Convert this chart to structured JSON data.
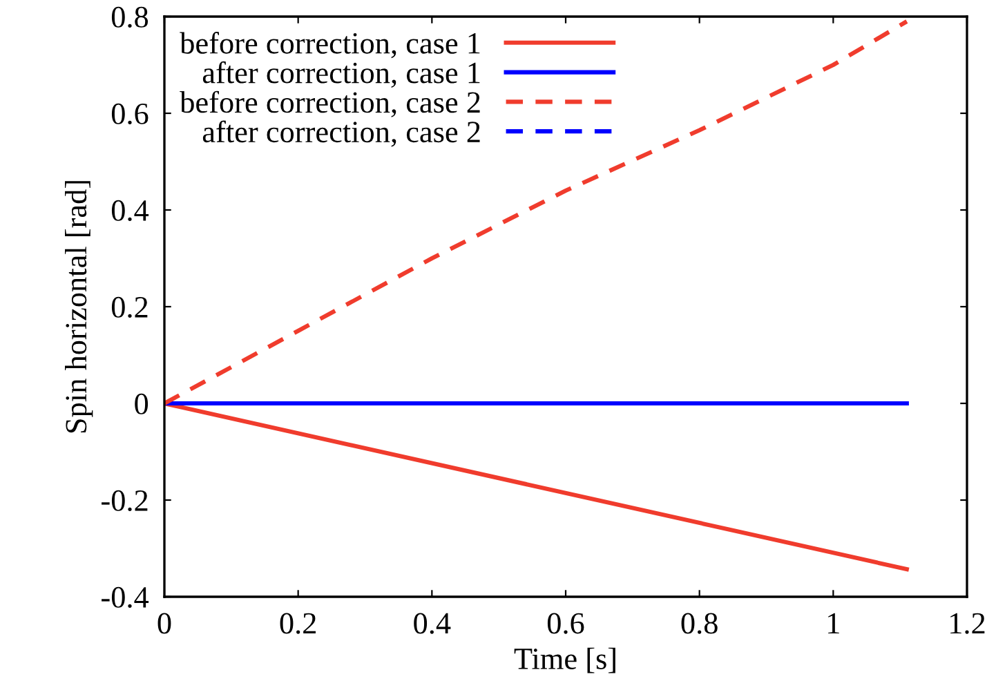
{
  "chart_data": {
    "type": "line",
    "xlabel": "Time [s]",
    "ylabel": "Spin horizontal [rad]",
    "xlim": [
      0,
      1.2
    ],
    "ylim": [
      -0.4,
      0.8
    ],
    "xticks": [
      0,
      0.2,
      0.4,
      0.6,
      0.8,
      1,
      1.2
    ],
    "yticks": [
      -0.4,
      -0.2,
      0,
      0.2,
      0.4,
      0.6,
      0.8
    ],
    "grid": false,
    "legend": "top left",
    "marker": "none",
    "series": [
      {
        "name": "before correction, case 1",
        "color": "#f03c2d",
        "line_style": "solid",
        "x": [
          0,
          1.11
        ],
        "values": [
          0,
          -0.343
        ]
      },
      {
        "name": "after correction, case 1",
        "color": "#0000ff",
        "line_style": "solid",
        "x": [
          0,
          1.11
        ],
        "values": [
          0,
          0
        ]
      },
      {
        "name": "before correction, case 2",
        "color": "#f03c2d",
        "line_style": "dashed",
        "x": [
          0,
          0.2,
          0.4,
          0.6,
          0.8,
          1.0,
          1.11
        ],
        "values": [
          0,
          0.15,
          0.3,
          0.44,
          0.565,
          0.7,
          0.79
        ]
      },
      {
        "name": "after correction, case 2",
        "color": "#0000ff",
        "line_style": "dashed"
      }
    ]
  }
}
